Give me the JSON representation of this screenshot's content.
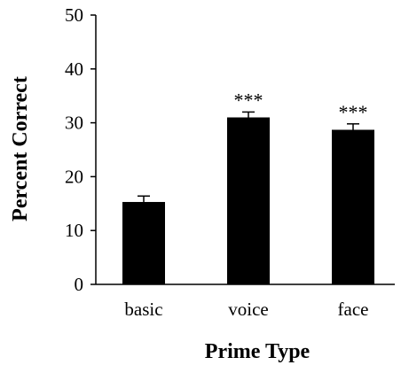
{
  "chart_data": {
    "type": "bar",
    "title": "",
    "xlabel": "Prime Type",
    "ylabel": "Percent Correct",
    "categories": [
      "basic",
      "voice",
      "face"
    ],
    "values": [
      15.3,
      31.0,
      28.7
    ],
    "errors": [
      1.1,
      1.0,
      1.1
    ],
    "annotations": [
      "",
      "***",
      "***"
    ],
    "ylim": [
      0,
      50
    ],
    "yticks": [
      0,
      10,
      20,
      30,
      40,
      50
    ],
    "grid": false,
    "bar_color": "#000000"
  }
}
